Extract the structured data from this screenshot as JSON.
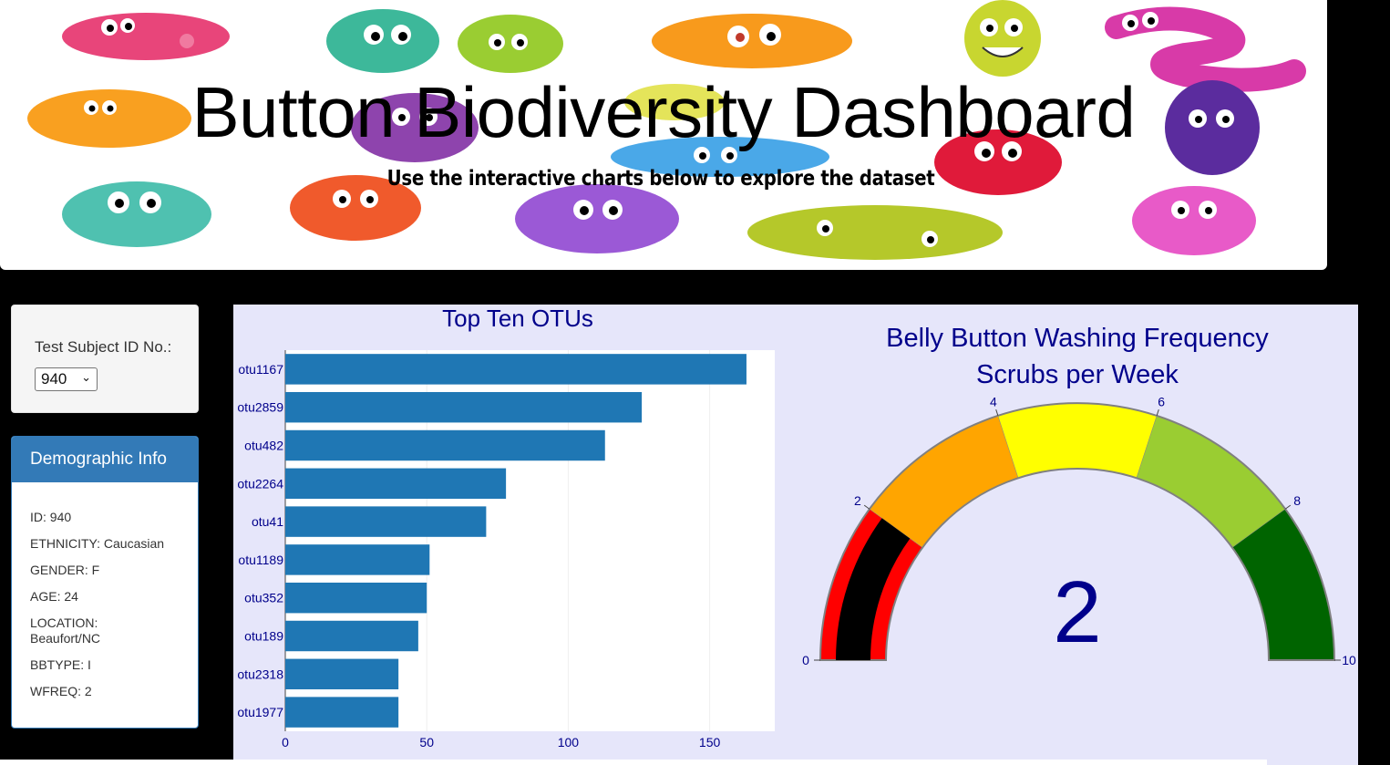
{
  "header": {
    "title": "Button Biodiversity Dashboard",
    "subtitle": "Use the interactive charts below to explore the dataset"
  },
  "selector": {
    "label": "Test Subject ID No.:",
    "selected": "940"
  },
  "demographics": {
    "heading": "Demographic Info",
    "lines": [
      "ID: 940",
      "ETHNICITY: Caucasian",
      "GENDER: F",
      "AGE: 24",
      "LOCATION: Beaufort/NC",
      "BBTYPE: I",
      "WFREQ: 2"
    ]
  },
  "colors": {
    "bar": "#1f77b4",
    "panel": "#337ab7",
    "chart_bg": "#e6e6fa",
    "title_text": "#00008b",
    "gauge_bands": [
      "#ff0000",
      "#ffa500",
      "#ffff00",
      "#9acd32",
      "#006400"
    ],
    "gauge_needle_bar": "#000000"
  },
  "chart_data": [
    {
      "type": "bar",
      "orientation": "horizontal",
      "title": "Top Ten OTUs",
      "categories": [
        "otu1167",
        "otu2859",
        "otu482",
        "otu2264",
        "otu41",
        "otu1189",
        "otu352",
        "otu189",
        "otu2318",
        "otu1977"
      ],
      "values": [
        163,
        126,
        113,
        78,
        71,
        51,
        50,
        47,
        40,
        40
      ],
      "xlim": [
        0,
        173
      ],
      "xticks": [
        0,
        50,
        100,
        150
      ],
      "grid": true
    },
    {
      "type": "gauge",
      "title": "Belly Button Washing Frequency",
      "subtitle": "Scrubs per Week",
      "value": 2,
      "range": [
        0,
        10
      ],
      "ticks": [
        0,
        2,
        4,
        6,
        8,
        10
      ],
      "bands": [
        [
          0,
          2
        ],
        [
          2,
          4
        ],
        [
          4,
          6
        ],
        [
          6,
          8
        ],
        [
          8,
          10
        ]
      ]
    }
  ]
}
